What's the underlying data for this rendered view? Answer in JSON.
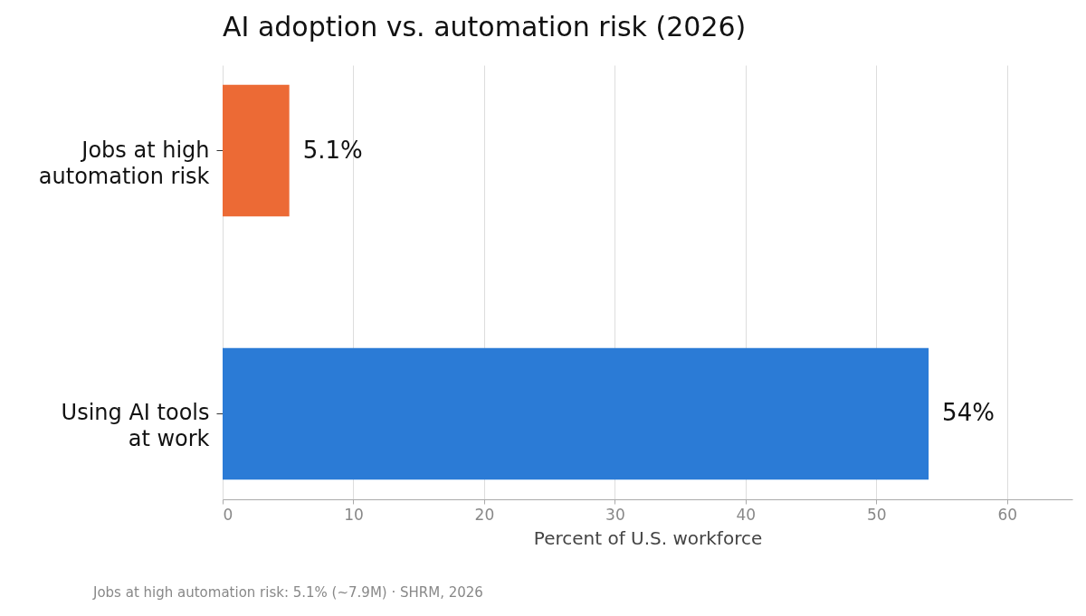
{
  "chart_data": {
    "type": "bar",
    "orientation": "horizontal",
    "title": "AI adoption vs. automation risk (2026)",
    "xlabel": "Percent of U.S. workforce",
    "categories": [
      "Jobs at high automation risk",
      "Using AI tools at work"
    ],
    "values": [
      5.1,
      54
    ],
    "colors": [
      "#ec6a35",
      "#2b7bd6"
    ],
    "value_labels": [
      "5.1%",
      "54%"
    ],
    "xlim": [
      0,
      65
    ],
    "xticks": [
      0,
      10,
      20,
      30,
      40,
      50,
      60
    ],
    "grid": "x",
    "annotations": [
      "Jobs at high automation risk: 5.1% (~7.9M) · SHRM, 2026"
    ]
  }
}
